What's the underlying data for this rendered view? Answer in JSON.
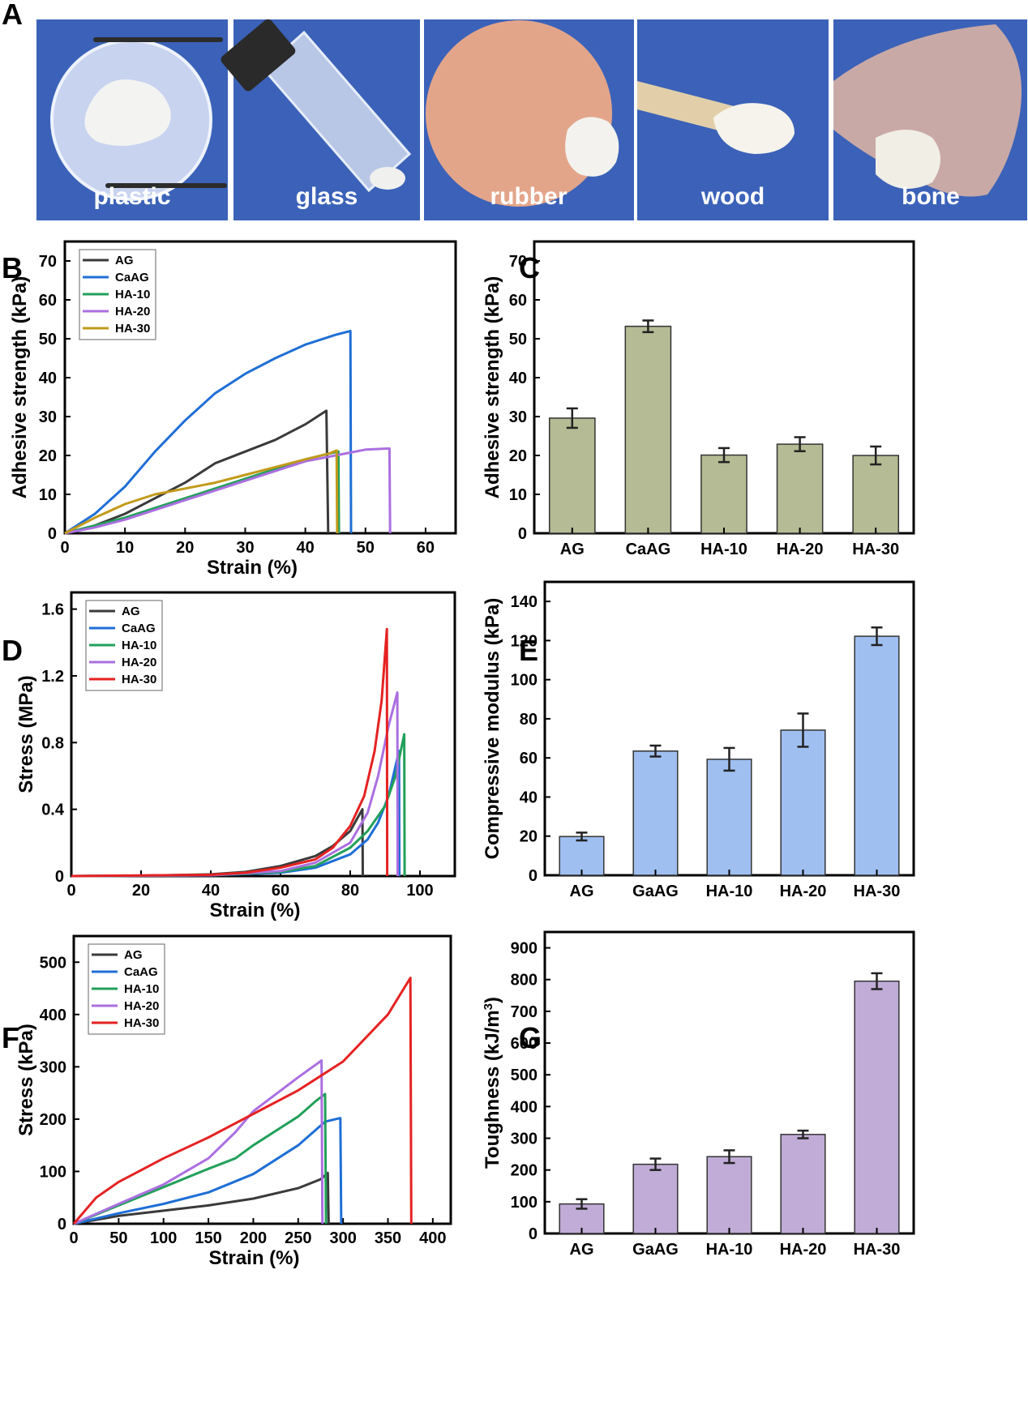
{
  "panel_letters": [
    "A",
    "B",
    "C",
    "D",
    "E",
    "F",
    "G"
  ],
  "photos": {
    "labels": [
      "plastic",
      "glass",
      "rubber",
      "wood",
      "bone"
    ],
    "background_color": "#3b62b8"
  },
  "colors": {
    "AG": "#3a3a3a",
    "CaAG": "#1f6fd6",
    "HA-10": "#22a05a",
    "HA-20": "#ab6fe0",
    "HA-30_B": "#c29a1a",
    "HA-30": "#e52222",
    "bar_C": "#b5bb94",
    "bar_E": "#9fbff0",
    "bar_G": "#c0acd6"
  },
  "chart_data": [
    {
      "id": "B",
      "type": "line",
      "xlabel": "Strain (%)",
      "ylabel": "Adhesive strength (kPa)",
      "xlim": [
        0,
        65
      ],
      "ylim": [
        0,
        75
      ],
      "xticks": [
        "0",
        "10",
        "20",
        "30",
        "40",
        "50",
        "60"
      ],
      "yticks": [
        "0",
        "10",
        "20",
        "30",
        "40",
        "50",
        "60",
        "70"
      ],
      "legend_position": "top-left",
      "series": [
        {
          "name": "AG",
          "color_key": "AG",
          "points": [
            [
              0,
              0
            ],
            [
              5,
              2
            ],
            [
              10,
              5
            ],
            [
              15,
              9
            ],
            [
              20,
              13
            ],
            [
              25,
              18
            ],
            [
              30,
              21
            ],
            [
              35,
              24
            ],
            [
              40,
              28
            ],
            [
              43.5,
              31.5
            ],
            [
              43.8,
              0
            ]
          ]
        },
        {
          "name": "CaAG",
          "color_key": "CaAG",
          "points": [
            [
              0,
              0
            ],
            [
              5,
              5
            ],
            [
              10,
              12
            ],
            [
              15,
              21
            ],
            [
              20,
              29
            ],
            [
              25,
              36
            ],
            [
              30,
              41
            ],
            [
              35,
              45
            ],
            [
              40,
              48.5
            ],
            [
              45,
              51
            ],
            [
              47.5,
              52
            ],
            [
              47.6,
              0
            ]
          ]
        },
        {
          "name": "HA-10",
          "color_key": "HA-10",
          "points": [
            [
              0,
              0
            ],
            [
              5,
              2
            ],
            [
              10,
              4
            ],
            [
              15,
              6.5
            ],
            [
              20,
              9
            ],
            [
              25,
              11.5
            ],
            [
              30,
              14
            ],
            [
              35,
              16.5
            ],
            [
              40,
              19
            ],
            [
              44,
              20.5
            ],
            [
              45.5,
              21
            ],
            [
              45.6,
              0
            ]
          ]
        },
        {
          "name": "HA-20",
          "color_key": "HA-20",
          "points": [
            [
              0,
              0
            ],
            [
              5,
              1.5
            ],
            [
              10,
              3.5
            ],
            [
              15,
              6
            ],
            [
              20,
              8.5
            ],
            [
              25,
              11
            ],
            [
              30,
              13.5
            ],
            [
              35,
              16
            ],
            [
              40,
              18.5
            ],
            [
              45,
              20
            ],
            [
              50,
              21.5
            ],
            [
              54,
              21.8
            ],
            [
              54.1,
              0
            ]
          ]
        },
        {
          "name": "HA-30",
          "color_key": "HA-30_B",
          "points": [
            [
              0,
              0
            ],
            [
              5,
              4
            ],
            [
              10,
              7.5
            ],
            [
              15,
              10
            ],
            [
              20,
              11.5
            ],
            [
              25,
              13
            ],
            [
              30,
              15
            ],
            [
              35,
              17
            ],
            [
              40,
              19
            ],
            [
              44,
              20.5
            ],
            [
              45.2,
              21.3
            ],
            [
              45.3,
              0
            ]
          ]
        }
      ]
    },
    {
      "id": "C",
      "type": "bar",
      "ylabel": "Adhesive strength (kPa)",
      "ylim": [
        0,
        75
      ],
      "yticks": [
        "0",
        "10",
        "20",
        "30",
        "40",
        "50",
        "60",
        "70"
      ],
      "categories": [
        "AG",
        "CaAG",
        "HA-10",
        "HA-20",
        "HA-30"
      ],
      "values": [
        29.6,
        53.2,
        20.1,
        22.9,
        20.0
      ],
      "errors": [
        2.5,
        1.5,
        1.8,
        1.8,
        2.3
      ],
      "color_key": "bar_C"
    },
    {
      "id": "D",
      "type": "line",
      "xlabel": "Strain (%)",
      "ylabel": "Stress (MPa)",
      "xlim": [
        0,
        110
      ],
      "ylim": [
        0,
        1.7
      ],
      "xticks": [
        "0",
        "20",
        "40",
        "60",
        "80",
        "100"
      ],
      "yticks": [
        "0",
        "0.4",
        "0.8",
        "1.2",
        "1.6"
      ],
      "legend_position": "top-left",
      "series": [
        {
          "name": "AG",
          "color_key": "AG",
          "points": [
            [
              0,
              0
            ],
            [
              20,
              0.002
            ],
            [
              40,
              0.01
            ],
            [
              50,
              0.025
            ],
            [
              60,
              0.06
            ],
            [
              70,
              0.12
            ],
            [
              75,
              0.18
            ],
            [
              80,
              0.27
            ],
            [
              83.5,
              0.4
            ],
            [
              83.6,
              0
            ]
          ]
        },
        {
          "name": "CaAG",
          "color_key": "CaAG",
          "points": [
            [
              0,
              0
            ],
            [
              40,
              0.005
            ],
            [
              60,
              0.02
            ],
            [
              70,
              0.05
            ],
            [
              80,
              0.13
            ],
            [
              85,
              0.22
            ],
            [
              88,
              0.32
            ],
            [
              91,
              0.48
            ],
            [
              94,
              0.75
            ],
            [
              94.1,
              0
            ]
          ]
        },
        {
          "name": "HA-10",
          "color_key": "HA-10",
          "points": [
            [
              0,
              0
            ],
            [
              40,
              0.005
            ],
            [
              60,
              0.025
            ],
            [
              70,
              0.06
            ],
            [
              80,
              0.17
            ],
            [
              85,
              0.27
            ],
            [
              90,
              0.42
            ],
            [
              93,
              0.6
            ],
            [
              95.5,
              0.85
            ],
            [
              95.6,
              0
            ]
          ]
        },
        {
          "name": "HA-20",
          "color_key": "HA-20",
          "points": [
            [
              0,
              0
            ],
            [
              40,
              0.005
            ],
            [
              60,
              0.03
            ],
            [
              70,
              0.08
            ],
            [
              80,
              0.2
            ],
            [
              85,
              0.38
            ],
            [
              88,
              0.6
            ],
            [
              91,
              0.9
            ],
            [
              93.5,
              1.1
            ],
            [
              93.6,
              0
            ]
          ]
        },
        {
          "name": "HA-30",
          "color_key": "HA-30",
          "points": [
            [
              0,
              0
            ],
            [
              40,
              0.008
            ],
            [
              50,
              0.02
            ],
            [
              60,
              0.05
            ],
            [
              70,
              0.1
            ],
            [
              75,
              0.17
            ],
            [
              80,
              0.3
            ],
            [
              84,
              0.48
            ],
            [
              87,
              0.75
            ],
            [
              89,
              1.05
            ],
            [
              90.5,
              1.48
            ],
            [
              90.6,
              0
            ]
          ]
        }
      ]
    },
    {
      "id": "E",
      "type": "bar",
      "ylabel": "Compressive modulus (kPa)",
      "ylim": [
        0,
        150
      ],
      "yticks": [
        "0",
        "20",
        "40",
        "60",
        "80",
        "100",
        "120",
        "140"
      ],
      "categories": [
        "AG",
        "GaAG",
        "HA-10",
        "HA-20",
        "HA-30"
      ],
      "values": [
        19.8,
        63.5,
        59.3,
        74.2,
        122.2
      ],
      "errors": [
        2.0,
        2.8,
        5.8,
        8.5,
        4.5
      ],
      "color_key": "bar_E"
    },
    {
      "id": "F",
      "type": "line",
      "xlabel": "Strain (%)",
      "ylabel": "Stress (kPa)",
      "xlim": [
        0,
        420
      ],
      "ylim": [
        0,
        550
      ],
      "xticks": [
        "0",
        "50",
        "100",
        "150",
        "200",
        "250",
        "300",
        "350",
        "400"
      ],
      "yticks": [
        "0",
        "100",
        "200",
        "300",
        "400",
        "500"
      ],
      "legend_position": "top-left",
      "series": [
        {
          "name": "AG",
          "color_key": "AG",
          "points": [
            [
              0,
              0
            ],
            [
              50,
              15
            ],
            [
              100,
              25
            ],
            [
              150,
              35
            ],
            [
              200,
              48
            ],
            [
              250,
              68
            ],
            [
              275,
              85
            ],
            [
              283,
              97
            ],
            [
              284,
              0
            ]
          ]
        },
        {
          "name": "CaAG",
          "color_key": "CaAG",
          "points": [
            [
              0,
              0
            ],
            [
              50,
              20
            ],
            [
              100,
              38
            ],
            [
              150,
              60
            ],
            [
              200,
              95
            ],
            [
              250,
              150
            ],
            [
              280,
              195
            ],
            [
              297,
              202
            ],
            [
              298,
              0
            ]
          ]
        },
        {
          "name": "HA-10",
          "color_key": "HA-10",
          "points": [
            [
              0,
              0
            ],
            [
              50,
              35
            ],
            [
              100,
              70
            ],
            [
              150,
              105
            ],
            [
              180,
              125
            ],
            [
              200,
              150
            ],
            [
              250,
              205
            ],
            [
              270,
              235
            ],
            [
              280,
              248
            ],
            [
              281,
              0
            ]
          ]
        },
        {
          "name": "HA-20",
          "color_key": "HA-20",
          "points": [
            [
              0,
              0
            ],
            [
              50,
              38
            ],
            [
              100,
              75
            ],
            [
              150,
              125
            ],
            [
              180,
              175
            ],
            [
              200,
              215
            ],
            [
              250,
              280
            ],
            [
              276,
              312
            ],
            [
              277,
              0
            ]
          ]
        },
        {
          "name": "HA-30",
          "color_key": "HA-30",
          "points": [
            [
              0,
              0
            ],
            [
              25,
              50
            ],
            [
              50,
              80
            ],
            [
              100,
              125
            ],
            [
              150,
              165
            ],
            [
              200,
              210
            ],
            [
              250,
              255
            ],
            [
              300,
              310
            ],
            [
              350,
              400
            ],
            [
              375,
              470
            ],
            [
              376,
              0
            ]
          ]
        }
      ]
    },
    {
      "id": "G",
      "type": "bar",
      "ylabel": "Toughness (kJ/m3)",
      "ylim": [
        0,
        950
      ],
      "yticks": [
        "0",
        "100",
        "200",
        "300",
        "400",
        "500",
        "600",
        "700",
        "800",
        "900"
      ],
      "categories": [
        "AG",
        "GaAG",
        "HA-10",
        "HA-20",
        "HA-30"
      ],
      "values": [
        93,
        218,
        242,
        312,
        795
      ],
      "errors": [
        15,
        18,
        20,
        12,
        25
      ],
      "color_key": "bar_G"
    }
  ]
}
